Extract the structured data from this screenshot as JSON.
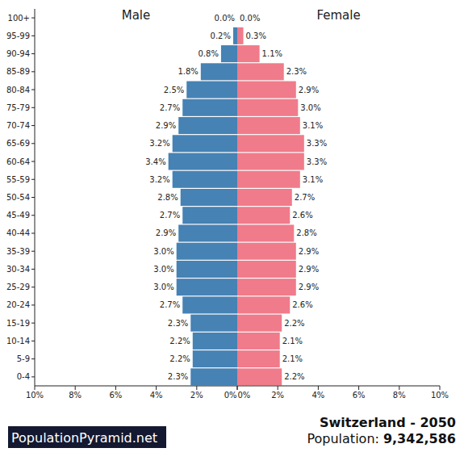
{
  "chart_data": [
    {
      "type": "bar",
      "orientation": "horizontal",
      "title": "Male",
      "data_labels": true,
      "categories": [
        "0-4",
        "5-9",
        "10-14",
        "15-19",
        "20-24",
        "25-29",
        "30-34",
        "35-39",
        "40-44",
        "45-49",
        "50-54",
        "55-59",
        "60-64",
        "65-69",
        "70-74",
        "75-79",
        "80-84",
        "85-89",
        "90-94",
        "95-99",
        "100+"
      ],
      "series": [
        {
          "color": "#4682b4",
          "values": [
            2.3,
            2.2,
            2.2,
            2.3,
            2.7,
            3.0,
            3.0,
            3.0,
            2.9,
            2.7,
            2.8,
            3.2,
            3.4,
            3.2,
            2.9,
            2.7,
            2.5,
            1.8,
            0.8,
            0.2,
            0.0
          ],
          "value_labels": [
            "2.3%",
            "2.2%",
            "2.2%",
            "2.3%",
            "2.7%",
            "3.0%",
            "3.0%",
            "3.0%",
            "2.9%",
            "2.7%",
            "2.8%",
            "3.2%",
            "3.4%",
            "3.2%",
            "2.9%",
            "2.7%",
            "2.5%",
            "1.8%",
            "0.8%",
            "0.2%",
            "0.0%"
          ]
        }
      ],
      "xlim": [
        10,
        0
      ],
      "xticks": [
        {
          "value": 10,
          "label": "10%"
        },
        {
          "value": 8,
          "label": "8%"
        },
        {
          "value": 6,
          "label": "6%"
        },
        {
          "value": 4,
          "label": "4%"
        },
        {
          "value": 2,
          "label": "2%"
        },
        {
          "value": 0,
          "label": "0%"
        }
      ]
    },
    {
      "type": "bar",
      "orientation": "horizontal",
      "title": "Female",
      "data_labels": true,
      "categories": [
        "0-4",
        "5-9",
        "10-14",
        "15-19",
        "20-24",
        "25-29",
        "30-34",
        "35-39",
        "40-44",
        "45-49",
        "50-54",
        "55-59",
        "60-64",
        "65-69",
        "70-74",
        "75-79",
        "80-84",
        "85-89",
        "90-94",
        "95-99",
        "100+"
      ],
      "series": [
        {
          "color": "#f07b8a",
          "values": [
            2.2,
            2.1,
            2.1,
            2.2,
            2.6,
            2.9,
            2.9,
            2.9,
            2.8,
            2.6,
            2.7,
            3.1,
            3.3,
            3.3,
            3.1,
            3.0,
            2.9,
            2.3,
            1.1,
            0.3,
            0.0
          ],
          "value_labels": [
            "2.2%",
            "2.1%",
            "2.1%",
            "2.2%",
            "2.6%",
            "2.9%",
            "2.9%",
            "2.9%",
            "2.8%",
            "2.6%",
            "2.7%",
            "3.1%",
            "3.3%",
            "3.3%",
            "3.1%",
            "3.0%",
            "2.9%",
            "2.3%",
            "1.1%",
            "0.3%",
            "0.0%"
          ]
        }
      ],
      "xlim": [
        0,
        10
      ],
      "xticks": [
        {
          "value": 0,
          "label": "0%"
        },
        {
          "value": 2,
          "label": "2%"
        },
        {
          "value": 4,
          "label": "4%"
        },
        {
          "value": 6,
          "label": "6%"
        },
        {
          "value": 8,
          "label": "8%"
        },
        {
          "value": 10,
          "label": "10%"
        }
      ]
    }
  ],
  "footer": {
    "brand": "PopulationPyramid.net",
    "title": "Switzerland - 2050",
    "population_caption": "Population:",
    "population": "9,342,586"
  }
}
